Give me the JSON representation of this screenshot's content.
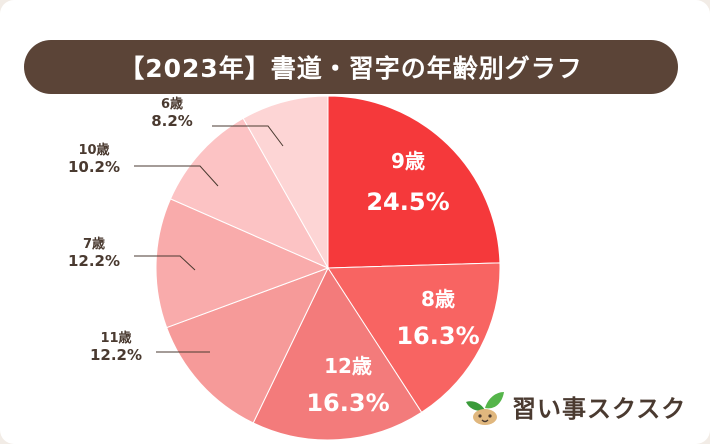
{
  "chart_data": {
    "type": "pie",
    "title": "【2023年】書道・習字の年齢別グラフ",
    "slices": [
      {
        "label": "9歳",
        "value": 24.5,
        "display": "24.5%",
        "color": "#f5393b",
        "inside": true
      },
      {
        "label": "8歳",
        "value": 16.3,
        "display": "16.3%",
        "color": "#f86462",
        "inside": true
      },
      {
        "label": "12歳",
        "value": 16.3,
        "display": "16.3%",
        "color": "#f37b7b",
        "inside": true
      },
      {
        "label": "11歳",
        "value": 12.2,
        "display": "12.2%",
        "color": "#f69a99",
        "inside": false
      },
      {
        "label": "7歳",
        "value": 12.2,
        "display": "12.2%",
        "color": "#f9abab",
        "inside": false
      },
      {
        "label": "10歳",
        "value": 10.2,
        "display": "10.2%",
        "color": "#fcc3c4",
        "inside": false
      },
      {
        "label": "6歳",
        "value": 8.2,
        "display": "8.2%",
        "color": "#fdd5d5",
        "inside": false
      }
    ],
    "start_angle": "12 o'clock",
    "direction": "clockwise"
  },
  "brand": {
    "name": "習い事スクスク",
    "icon": "sprout-icon",
    "leaf_color": "#3a9b3a",
    "pot_color": "#d8b07a"
  }
}
